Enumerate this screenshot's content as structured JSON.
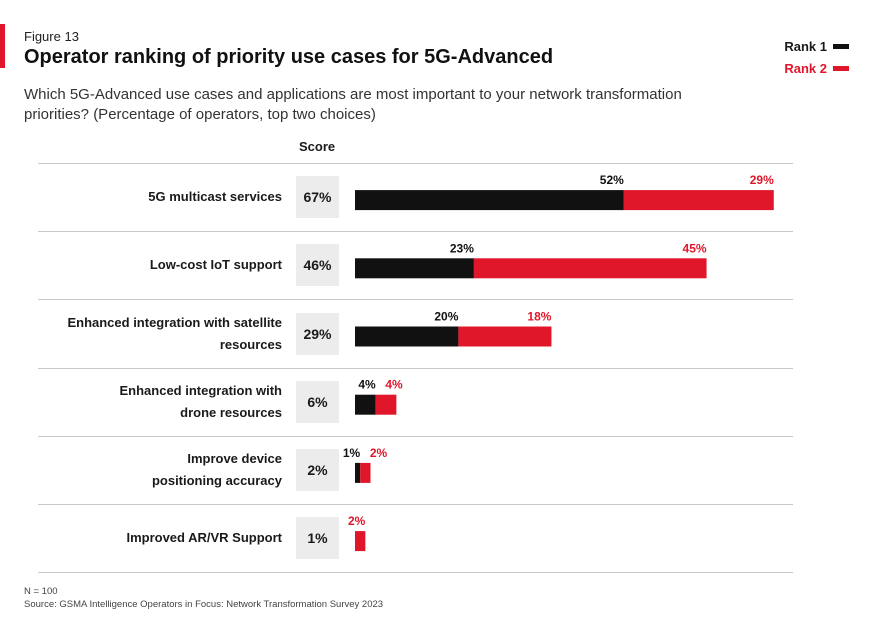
{
  "figure_label": "Figure 13",
  "title": "Operator ranking of priority use cases for 5G-Advanced",
  "subtitle": "Which 5G-Advanced use cases and applications are most important to your network transformation priorities? (Percentage of operators, top two choices)",
  "score_header": "Score",
  "legend": [
    {
      "label": "Rank 1",
      "color": "#111111"
    },
    {
      "label": "Rank 2",
      "color": "#e0162b"
    }
  ],
  "colors": {
    "accent": "#e0162b",
    "rank1": "#111111",
    "rank2": "#e0162b"
  },
  "footnotes": {
    "n": "N = 100",
    "source": "Source: GSMA Intelligence Operators in Focus: Network Transformation Survey 2023"
  },
  "chart_data": {
    "type": "bar",
    "orientation": "horizontal",
    "stacked": true,
    "title": "Operator ranking of priority use cases for 5G-Advanced",
    "legend_position": "top-right",
    "categories": [
      [
        "5G multicast services"
      ],
      [
        "Low-cost IoT support"
      ],
      [
        "Enhanced integration with satellite",
        "resources"
      ],
      [
        "Enhanced integration with",
        "drone resources"
      ],
      [
        "Improve device",
        "positioning accuracy"
      ],
      [
        "Improved AR/VR Support"
      ]
    ],
    "scores": [
      "67%",
      "46%",
      "29%",
      "6%",
      "2%",
      "1%"
    ],
    "series": [
      {
        "name": "Rank 1",
        "values": [
          52,
          23,
          20,
          4,
          1,
          0
        ],
        "labels": [
          "52%",
          "23%",
          "20%",
          "4%",
          "1%",
          ""
        ]
      },
      {
        "name": "Rank 2",
        "values": [
          29,
          45,
          18,
          4,
          2,
          2
        ],
        "labels": [
          "29%",
          "45%",
          "18%",
          "4%",
          "2%",
          "2%"
        ]
      }
    ],
    "units": "%"
  }
}
